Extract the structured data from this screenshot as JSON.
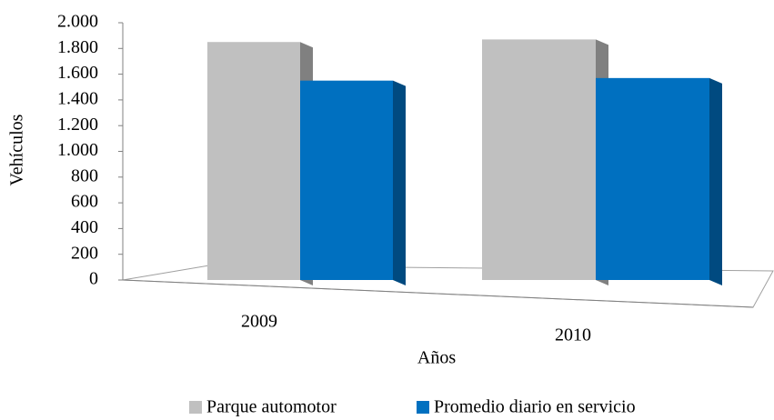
{
  "chart_data": {
    "type": "bar3d",
    "x_label": "Años",
    "y_label": "Vehículos",
    "categories": [
      "2009",
      "2010"
    ],
    "series": [
      {
        "name": "Parque automotor",
        "color": "#c0c0c0",
        "side_color": "#808080",
        "values": [
          1850,
          1870
        ]
      },
      {
        "name": "Promedio diario en servicio",
        "color": "#0070c0",
        "side_color": "#004a80",
        "values": [
          1550,
          1570
        ]
      }
    ],
    "ylim": [
      0,
      2000
    ],
    "yticks": [
      0,
      {
        "value": 200,
        "label": "200"
      },
      {
        "value": 400,
        "label": "400"
      },
      {
        "value": 600,
        "label": "600"
      },
      {
        "value": 800,
        "label": "800"
      },
      {
        "value": 1000,
        "label": "1.000"
      },
      {
        "value": 1200,
        "label": "1.200"
      },
      {
        "value": 1400,
        "label": "1.400"
      },
      {
        "value": 1600,
        "label": "1.600"
      },
      {
        "value": 1800,
        "label": "1.800"
      },
      {
        "value": 2000,
        "label": "2.000"
      }
    ],
    "legend": "bottom"
  }
}
